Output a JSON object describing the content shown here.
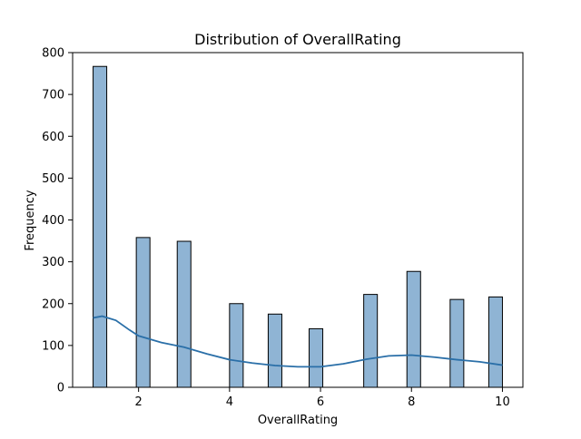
{
  "chart_data": {
    "type": "bar",
    "title": "Distribution of OverallRating",
    "xlabel": "OverallRating",
    "ylabel": "Frequency",
    "xlim": [
      0.55,
      10.45
    ],
    "ylim": [
      0,
      800
    ],
    "xticks": [
      2,
      4,
      6,
      8,
      10
    ],
    "yticks": [
      0,
      100,
      200,
      300,
      400,
      500,
      600,
      700,
      800
    ],
    "bar_width": 0.3,
    "bars": [
      {
        "x": 1.15,
        "value": 767
      },
      {
        "x": 2.1,
        "value": 358
      },
      {
        "x": 3.0,
        "value": 349
      },
      {
        "x": 4.15,
        "value": 200
      },
      {
        "x": 5.0,
        "value": 175
      },
      {
        "x": 5.9,
        "value": 140
      },
      {
        "x": 7.1,
        "value": 222
      },
      {
        "x": 8.05,
        "value": 277
      },
      {
        "x": 9.0,
        "value": 210
      },
      {
        "x": 9.85,
        "value": 216
      }
    ],
    "kde": {
      "x": [
        1.0,
        1.2,
        1.5,
        1.8,
        2.0,
        2.5,
        3.0,
        3.5,
        4.0,
        4.5,
        5.0,
        5.5,
        6.0,
        6.5,
        7.0,
        7.5,
        8.0,
        8.5,
        9.0,
        9.5,
        10.0
      ],
      "y": [
        166,
        170,
        160,
        137,
        123,
        107,
        96,
        80,
        66,
        58,
        52,
        49,
        49,
        56,
        67,
        75,
        77,
        72,
        66,
        61,
        53
      ]
    },
    "grid": false,
    "colors": {
      "bar_fill": "#8fb4d4",
      "bar_edge": "#000000",
      "kde_line": "#2a6fa8"
    }
  }
}
